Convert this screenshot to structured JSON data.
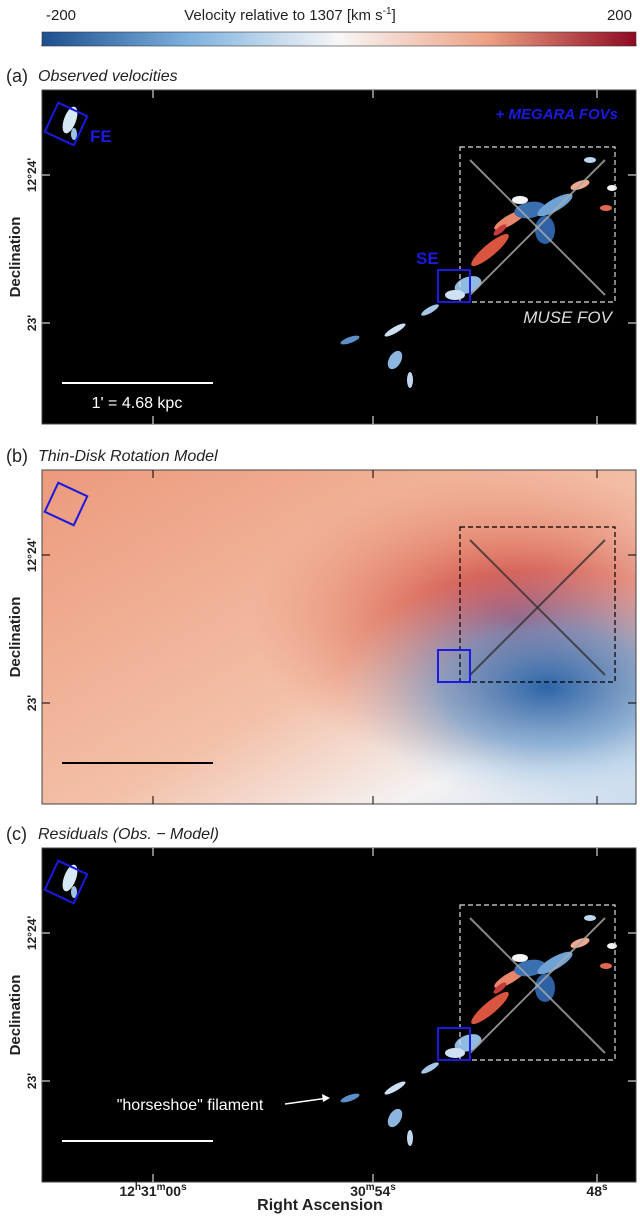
{
  "colorbar": {
    "label": [
      "Velocity relative to 1307 [km s",
      "-1",
      "]"
    ],
    "lim": [
      -200,
      200
    ],
    "ticks": [
      -200,
      200
    ],
    "colors": [
      "#1d4f8f",
      "#7fb2de",
      "#f7f7f7",
      "#eda083",
      "#8e0a22"
    ]
  },
  "y_axis": {
    "label": "Declination",
    "ticks": [
      "12°24'",
      "23'"
    ]
  },
  "x_axis": {
    "label": "Right Ascension",
    "ticks": [
      [
        "12",
        "h",
        "31",
        "m",
        "00",
        "s"
      ],
      [
        "30",
        "m",
        "54",
        "s"
      ],
      [
        "48",
        "s"
      ]
    ]
  },
  "panels": [
    {
      "tag": "(a)",
      "title": "Observed velocities",
      "annotations": [
        "+ MEGARA FOVs",
        "FE",
        "SE",
        "MUSE FOV",
        "1' = 4.68 kpc"
      ]
    },
    {
      "tag": "(b)",
      "title": "Thin-Disk Rotation Model",
      "annotations": []
    },
    {
      "tag": "(c)",
      "title": "Residuals (Obs. − Model)",
      "annotations": [
        "\"horseshoe\" filament"
      ]
    }
  ]
}
